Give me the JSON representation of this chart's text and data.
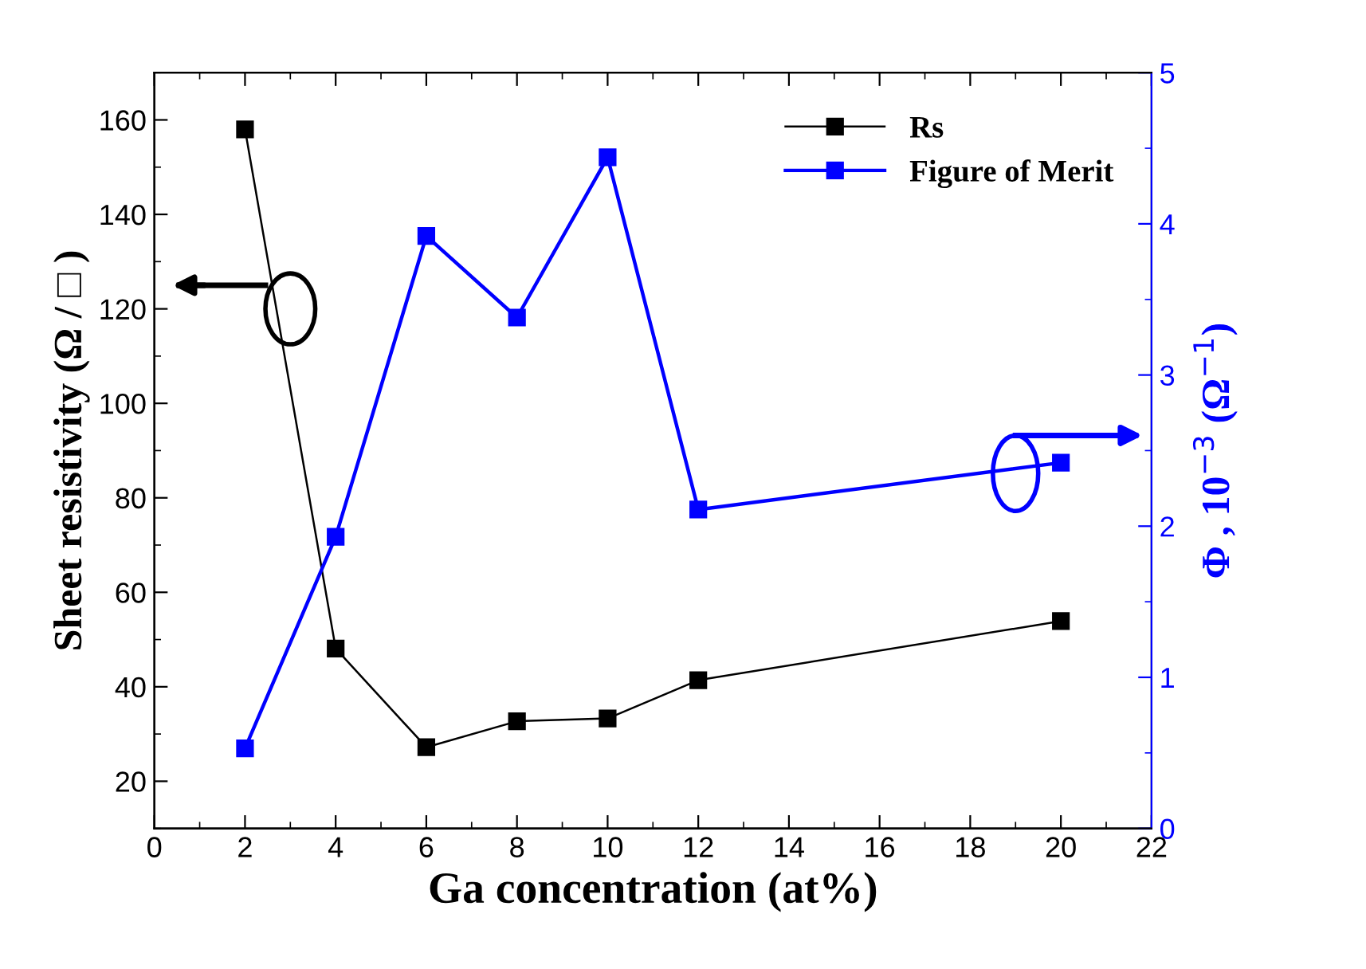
{
  "chart_data": {
    "type": "line",
    "xlabel": "Ga concentration (at%)",
    "ylabel": "Sheet resistivity (Ω / □ )",
    "y2label": "Φ , 10$^{−3}$ (Ω$^{−1}$)",
    "x": [
      2,
      4,
      6,
      8,
      10,
      12,
      20
    ],
    "series": [
      {
        "name": "Rs",
        "color": "#000000",
        "values": [
          158,
          48.1,
          27.2,
          32.7,
          33.3,
          41.4,
          53.9
        ]
      },
      {
        "name": "Figure of Merit",
        "color": "#0000ff",
        "axis": "y2",
        "values": [
          0.53,
          1.93,
          3.92,
          3.38,
          4.44,
          2.11,
          2.42
        ]
      }
    ],
    "xlim": [
      0,
      22
    ],
    "xticks": [
      0,
      2,
      4,
      6,
      8,
      10,
      12,
      14,
      16,
      18,
      20,
      22
    ],
    "ylim": [
      10,
      170
    ],
    "yticks": [
      20,
      40,
      60,
      80,
      100,
      120,
      140,
      160
    ],
    "y2lim": [
      0,
      5
    ],
    "y2ticks": [
      0,
      1,
      2,
      3,
      4,
      5
    ],
    "marker": "square",
    "line_style": "solid",
    "grid": false,
    "legend": "top right"
  }
}
